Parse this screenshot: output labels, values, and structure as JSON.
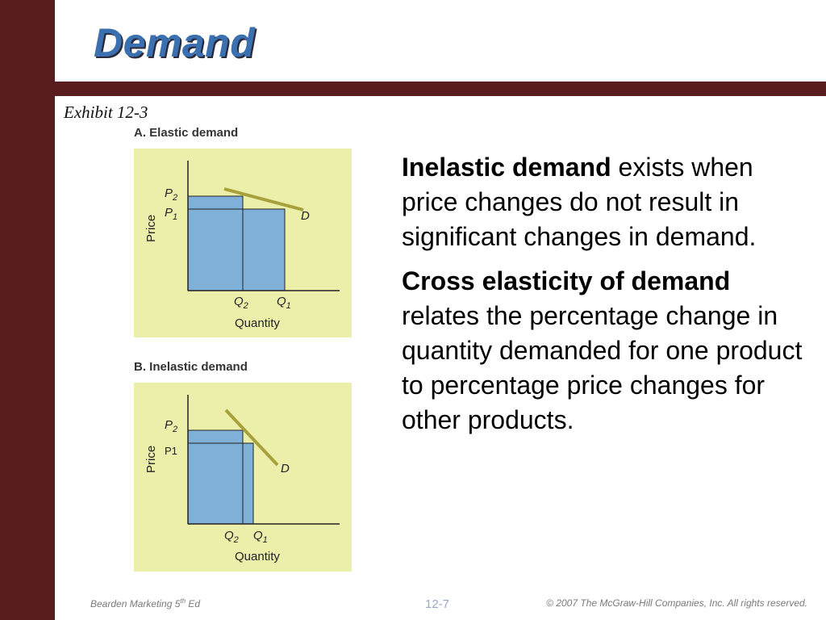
{
  "slide": {
    "title": "Demand",
    "exhibit": "Exhibit 12-3",
    "colors": {
      "frame": "#5a1d1f",
      "title": "#3a6fb0",
      "graph_bg": "#ecefaa",
      "bar_fill": "#7fb0d8",
      "demand_line": "#a6a13a"
    }
  },
  "panels": [
    {
      "label": "A. Elastic demand",
      "axis_y": "Price",
      "axis_x": "Quantity",
      "p_high": "P",
      "p_high_sub": "2",
      "p_low": "P",
      "p_low_sub": "1",
      "q_a": "Q",
      "q_a_sub": "2",
      "q_b": "Q",
      "q_b_sub": "1",
      "curve": "D"
    },
    {
      "label": "B. Inelastic demand",
      "axis_y": "Price",
      "axis_x": "Quantity",
      "p_high": "P",
      "p_high_sub": "2",
      "p_low": "P1",
      "p_low_sub": "",
      "q_a": "Q",
      "q_a_sub": "2",
      "q_b": "Q",
      "q_b_sub": "1",
      "curve": "D"
    }
  ],
  "body": {
    "p1_bold": "Inelastic demand",
    "p1_rest": " exists when price changes do not result in significant changes in demand.",
    "p2_bold": "Cross elasticity of demand",
    "p2_rest": " relates the percentage change in quantity demanded for one product to percentage price changes for other products."
  },
  "footer": {
    "left_main": "Bearden Marketing 5",
    "left_sup": "th",
    "left_end": " Ed",
    "page": "12-7",
    "copyright": "© 2007  The McGraw-Hill Companies, Inc.  All rights reserved."
  }
}
